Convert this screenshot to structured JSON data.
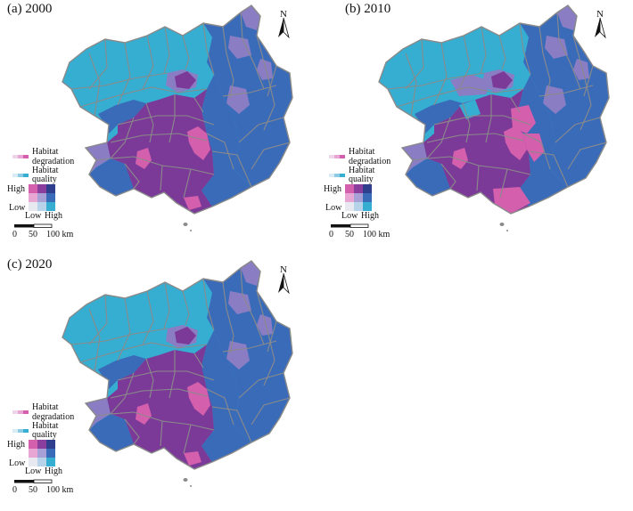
{
  "panels": [
    {
      "label": "(a) 2000",
      "variant": 0
    },
    {
      "label": "(b) 2010",
      "variant": 1
    },
    {
      "label": "(c) 2020",
      "variant": 2
    }
  ],
  "north": "N",
  "legend": {
    "degradation_1": "Habitat",
    "degradation_2": "degradation",
    "quality_1": "Habitat",
    "quality_2": "quality",
    "high": "High",
    "low": "Low",
    "x_low": "Low",
    "x_high": "High"
  },
  "scale": {
    "t0": "0",
    "t1": "50",
    "t2": "100 km"
  },
  "colors": {
    "cyan": "#35aed2",
    "blue": "#3a6bb9",
    "lavender": "#8b7dc4",
    "purple": "#7c3a98",
    "pink": "#d35fad",
    "dark": "#2f3f8e",
    "border": "#8a8a8a",
    "bivariate_grid": [
      [
        "#d35fad",
        "#8a3f9e",
        "#2f3f8e"
      ],
      [
        "#e7a6d4",
        "#a6a0d6",
        "#3a6bb9"
      ],
      [
        "#e8e8f0",
        "#b7d3ea",
        "#35aed2"
      ]
    ]
  }
}
